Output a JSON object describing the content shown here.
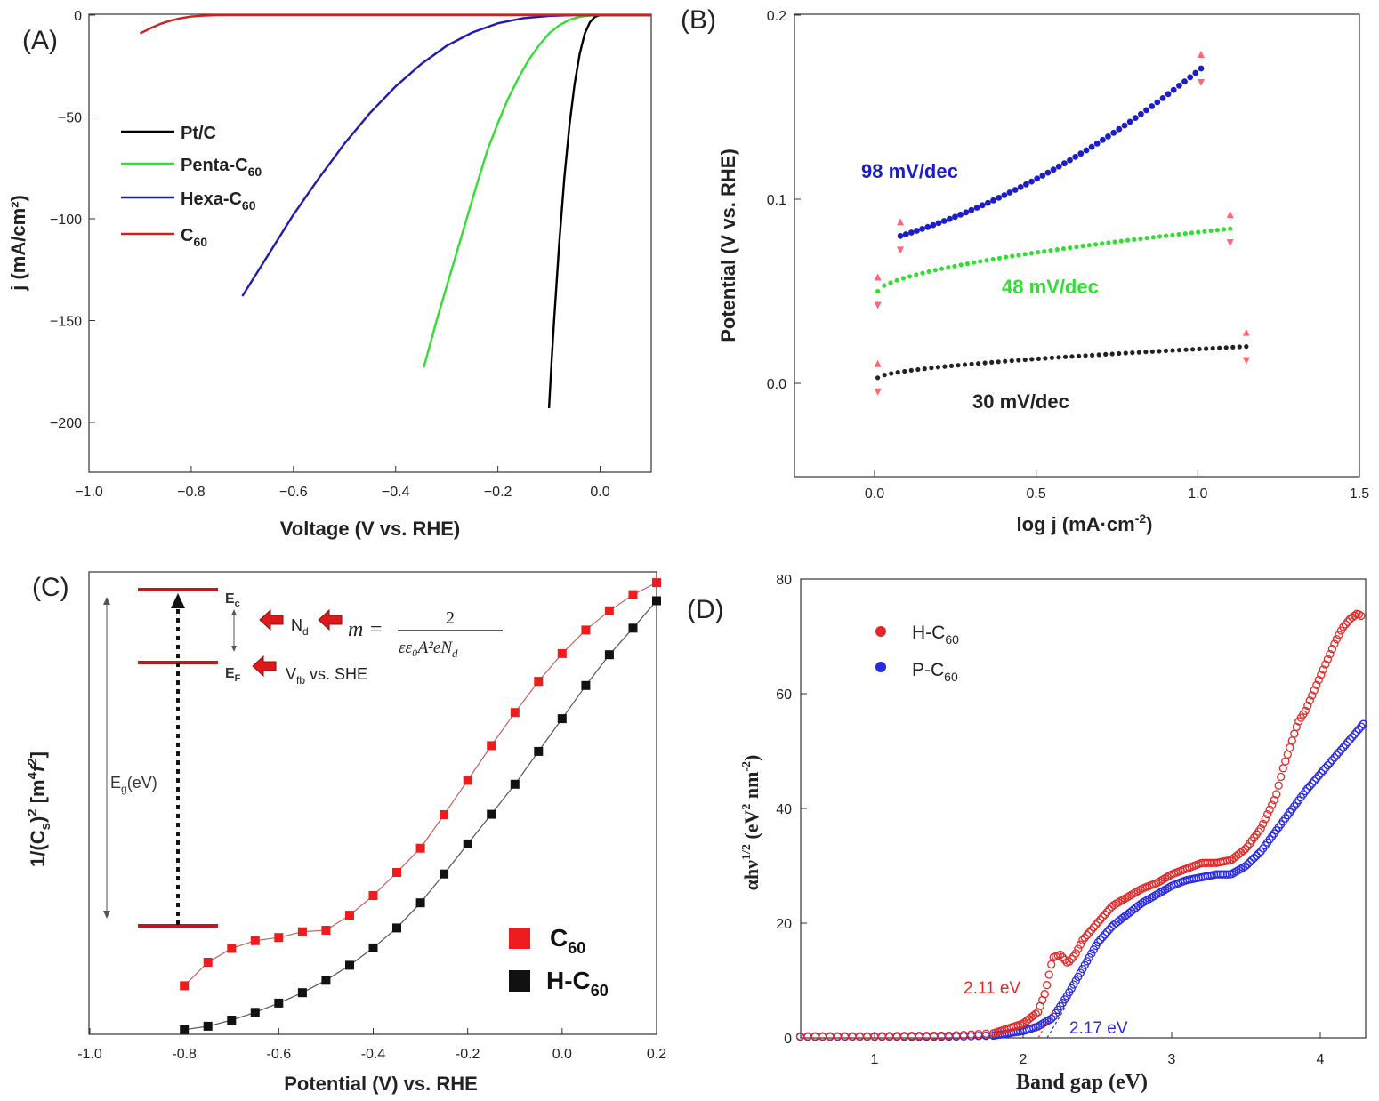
{
  "panels": {
    "A": {
      "label": "(A)",
      "xlabel": "Voltage (V vs. RHE)",
      "ylabel": "j (mA/cm²)",
      "xticks": [
        "−1.0",
        "−0.8",
        "−0.6",
        "−0.4",
        "−0.2",
        "0.0"
      ],
      "yticks": [
        "0",
        "−50",
        "−100",
        "−150",
        "−200"
      ],
      "legend": [
        {
          "name": "Pt/C",
          "sub": "",
          "color": "#000000"
        },
        {
          "name": "Penta-C",
          "sub": "60",
          "color": "#33dd33"
        },
        {
          "name": "Hexa-C",
          "sub": "60",
          "color": "#1c1cb0"
        },
        {
          "name": "C",
          "sub": "60",
          "color": "#d02020"
        }
      ]
    },
    "B": {
      "label": "(B)",
      "xlabel_main": "log j (mA·cm",
      "xlabel_sup": "-2",
      "xlabel_end": ")",
      "ylabel": "Potential (V vs. RHE)",
      "xticks": [
        "0.0",
        "0.5",
        "1.0",
        "1.5"
      ],
      "yticks": [
        "0.0",
        "0.1",
        "0.2"
      ],
      "annotations": [
        {
          "text": "98 mV/dec",
          "color": "#1c1cc8"
        },
        {
          "text": "48 mV/dec",
          "color": "#33dd33"
        },
        {
          "text": "30 mV/dec",
          "color": "#222222"
        }
      ]
    },
    "C": {
      "label": "(C)",
      "xlabel": "Potential (V) vs. RHE",
      "ylabel_parts": [
        "1/(C",
        "s",
        ")",
        "2",
        " [m",
        "4",
        "f",
        "2",
        "]"
      ],
      "xticks": [
        "-1.0",
        "-0.8",
        "-0.6",
        "-0.4",
        "-0.2",
        "0.0",
        "0.2"
      ],
      "legend": [
        {
          "name": "C",
          "sub": "60",
          "color": "#ee1c1c"
        },
        {
          "name": "H-C",
          "sub": "60",
          "color": "#111111"
        }
      ],
      "inset": {
        "ec": "E",
        "ec_sub": "c",
        "ef": "E",
        "ef_sub": "F",
        "eg": "E",
        "eg_sub": "g",
        "eg_unit": "(eV)",
        "nd": "N",
        "nd_sub": "d",
        "vfb": "V",
        "vfb_sub": "fb",
        "vfb_rest": " vs. SHE",
        "m_lhs": "m =",
        "m_num": "2",
        "m_den": "εε₀A²eN",
        "m_den_sub": "d"
      }
    },
    "D": {
      "label": "(D)",
      "xlabel": "Band gap (eV)",
      "ylabel_parts": [
        "αhν",
        "1/2",
        " (eV",
        "2",
        " nm",
        "-2",
        ")"
      ],
      "xticks": [
        "1",
        "2",
        "3",
        "4"
      ],
      "yticks": [
        "0",
        "20",
        "40",
        "60",
        "80"
      ],
      "legend": [
        {
          "name": "H-C",
          "sub": "60",
          "color": "#e02a2a"
        },
        {
          "name": "P-C",
          "sub": "60",
          "color": "#2a2ae0"
        }
      ],
      "annotations": [
        {
          "text": "2.11 eV",
          "color": "#e02a2a"
        },
        {
          "text": "2.17 eV",
          "color": "#2a2ae0"
        }
      ]
    }
  },
  "chart_data": [
    {
      "type": "line",
      "panel": "A",
      "xlabel": "Voltage (V vs. RHE)",
      "ylabel": "j (mA/cm2)",
      "xlim": [
        -1.0,
        0.1
      ],
      "ylim": [
        -225,
        0
      ],
      "legend_position": "left",
      "series": [
        {
          "name": "Pt/C",
          "color": "#000000",
          "x": [
            -0.1,
            -0.095,
            -0.09,
            -0.08,
            -0.07,
            -0.06,
            -0.05,
            -0.04,
            -0.03,
            -0.02,
            -0.01,
            0.0,
            0.1
          ],
          "y": [
            -193,
            -170,
            -150,
            -112,
            -80,
            -54,
            -34,
            -19,
            -9,
            -3.5,
            -0.8,
            0,
            0
          ]
        },
        {
          "name": "Penta-C60",
          "color": "#33dd33",
          "x": [
            -0.345,
            -0.32,
            -0.3,
            -0.28,
            -0.26,
            -0.24,
            -0.22,
            -0.2,
            -0.18,
            -0.16,
            -0.14,
            -0.12,
            -0.1,
            -0.08,
            -0.06,
            -0.04,
            -0.02,
            0.0,
            0.1
          ],
          "y": [
            -173,
            -150,
            -133,
            -116,
            -99,
            -82,
            -66,
            -53,
            -41,
            -31,
            -22,
            -15,
            -9,
            -5,
            -2.3,
            -0.8,
            -0.2,
            0,
            0
          ]
        },
        {
          "name": "Hexa-C60",
          "color": "#1c1cb0",
          "x": [
            -0.7,
            -0.65,
            -0.6,
            -0.55,
            -0.5,
            -0.45,
            -0.4,
            -0.35,
            -0.3,
            -0.25,
            -0.2,
            -0.15,
            -0.1,
            -0.05,
            0.0,
            0.1
          ],
          "y": [
            -138,
            -118,
            -98,
            -80,
            -63,
            -48,
            -35,
            -24,
            -15,
            -8.5,
            -4,
            -1.5,
            -0.4,
            0,
            0,
            0
          ]
        },
        {
          "name": "C60",
          "color": "#d02020",
          "x": [
            -0.9,
            -0.88,
            -0.86,
            -0.84,
            -0.82,
            -0.8,
            -0.78,
            -0.75,
            -0.7,
            0.1
          ],
          "y": [
            -9,
            -6.5,
            -4.3,
            -2.7,
            -1.5,
            -0.7,
            -0.3,
            0,
            0,
            0
          ]
        }
      ]
    },
    {
      "type": "scatter",
      "panel": "B",
      "xlabel": "log j (mA·cm-2)",
      "ylabel": "Potential (V vs. RHE)",
      "xlim": [
        -0.25,
        1.5
      ],
      "ylim": [
        -0.05,
        0.2
      ],
      "series": [
        {
          "name": "98 mV/dec",
          "color": "#1c1cc8",
          "x_range": [
            0.08,
            1.01
          ],
          "y_range": [
            0.08,
            0.171
          ],
          "curve": "convex"
        },
        {
          "name": "48 mV/dec",
          "color": "#33dd33",
          "x_range": [
            0.01,
            1.1
          ],
          "y_range": [
            0.05,
            0.084
          ],
          "curve": "concave"
        },
        {
          "name": "30 mV/dec",
          "color": "#222222",
          "x_range": [
            0.01,
            1.15
          ],
          "y_range": [
            0.003,
            0.02
          ],
          "curve": "concave"
        }
      ]
    },
    {
      "type": "line",
      "panel": "C",
      "xlabel": "Potential (V) vs. RHE",
      "xlim": [
        -1.0,
        0.2
      ],
      "legend_position": "bottom-right",
      "series": [
        {
          "name": "C60",
          "color": "#ee1c1c",
          "x": [
            -0.8,
            -0.75,
            -0.7,
            -0.65,
            -0.6,
            -0.55,
            -0.5,
            -0.45,
            -0.4,
            -0.35,
            -0.3,
            -0.25,
            -0.2,
            -0.15,
            -0.1,
            -0.05,
            0.0,
            0.05,
            0.1,
            0.15,
            0.2
          ],
          "y": [
            0.126,
            0.187,
            0.223,
            0.243,
            0.251,
            0.266,
            0.27,
            0.309,
            0.36,
            0.42,
            0.483,
            0.57,
            0.659,
            0.749,
            0.835,
            0.916,
            0.988,
            1.049,
            1.099,
            1.141,
            1.172
          ]
        },
        {
          "name": "H-C60",
          "color": "#111111",
          "x": [
            -0.8,
            -0.75,
            -0.7,
            -0.65,
            -0.6,
            -0.55,
            -0.5,
            -0.45,
            -0.4,
            -0.35,
            -0.3,
            -0.25,
            -0.2,
            -0.15,
            -0.1,
            -0.05,
            0.0,
            0.05,
            0.1,
            0.15,
            0.2
          ],
          "y": [
            0.012,
            0.021,
            0.037,
            0.057,
            0.081,
            0.108,
            0.14,
            0.179,
            0.224,
            0.276,
            0.341,
            0.416,
            0.494,
            0.571,
            0.649,
            0.734,
            0.819,
            0.905,
            0.985,
            1.054,
            1.125
          ]
        }
      ]
    },
    {
      "type": "scatter",
      "panel": "D",
      "xlabel": "Band gap (eV)",
      "ylabel": "αhν1/2 (eV2 nm-2)",
      "xlim": [
        0.5,
        4.3
      ],
      "ylim": [
        0,
        80
      ],
      "legend_position": "top-left",
      "series": [
        {
          "name": "H-C60",
          "color": "#e02a2a",
          "x": [
            0.5,
            1.0,
            1.5,
            1.8,
            2.0,
            2.1,
            2.15,
            2.2,
            2.25,
            2.3,
            2.35,
            2.4,
            2.5,
            2.6,
            2.7,
            2.8,
            2.9,
            3.0,
            3.1,
            3.2,
            3.3,
            3.4,
            3.5,
            3.6,
            3.7,
            3.75,
            3.8,
            3.85,
            3.9,
            3.95,
            4.0,
            4.05,
            4.1,
            4.15,
            4.2,
            4.25,
            4.28
          ],
          "y": [
            0.3,
            0.3,
            0.4,
            0.8,
            2.5,
            4.5,
            8,
            14,
            14.5,
            13,
            14.5,
            17,
            20,
            23,
            24.5,
            26,
            27,
            28.5,
            29.5,
            30.5,
            30.5,
            31,
            33,
            36.5,
            42,
            47,
            51,
            55,
            57,
            60,
            63,
            66,
            69,
            71.5,
            73,
            74,
            73.5
          ]
        },
        {
          "name": "P-C60",
          "color": "#2a2ae0",
          "x": [
            0.5,
            1.0,
            1.5,
            1.8,
            2.0,
            2.1,
            2.2,
            2.3,
            2.4,
            2.5,
            2.6,
            2.7,
            2.8,
            2.9,
            3.0,
            3.1,
            3.2,
            3.3,
            3.4,
            3.5,
            3.6,
            3.7,
            3.8,
            3.9,
            4.0,
            4.1,
            4.2,
            4.3
          ],
          "y": [
            0.2,
            0.2,
            0.2,
            0.4,
            1.2,
            2.0,
            3.5,
            7.5,
            12,
            16.5,
            19.5,
            21.5,
            23.5,
            25,
            26.5,
            27.5,
            28,
            28.5,
            28.5,
            30,
            32.5,
            36,
            39.5,
            43,
            46,
            49,
            52,
            55
          ]
        }
      ]
    }
  ]
}
